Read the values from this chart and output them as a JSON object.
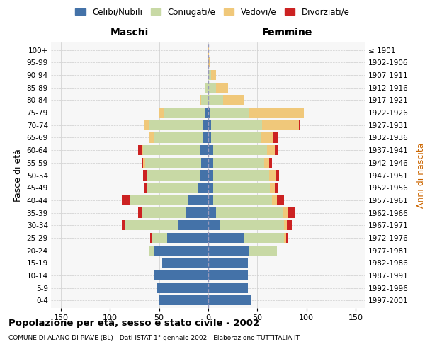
{
  "age_groups": [
    "0-4",
    "5-9",
    "10-14",
    "15-19",
    "20-24",
    "25-29",
    "30-34",
    "35-39",
    "40-44",
    "45-49",
    "50-54",
    "55-59",
    "60-64",
    "65-69",
    "70-74",
    "75-79",
    "80-84",
    "85-89",
    "90-94",
    "95-99",
    "100+"
  ],
  "birth_years": [
    "1997-2001",
    "1992-1996",
    "1987-1991",
    "1982-1986",
    "1977-1981",
    "1972-1976",
    "1967-1971",
    "1962-1966",
    "1957-1961",
    "1952-1956",
    "1947-1951",
    "1942-1946",
    "1937-1941",
    "1932-1936",
    "1927-1931",
    "1922-1926",
    "1917-1921",
    "1912-1916",
    "1907-1911",
    "1902-1906",
    "≤ 1901"
  ],
  "males": {
    "celibi": [
      50,
      52,
      55,
      47,
      55,
      42,
      30,
      23,
      20,
      10,
      8,
      7,
      8,
      5,
      5,
      3,
      0,
      0,
      0,
      0,
      0
    ],
    "coniugati": [
      0,
      0,
      0,
      0,
      5,
      15,
      55,
      45,
      60,
      52,
      55,
      57,
      58,
      50,
      55,
      42,
      7,
      3,
      0,
      0,
      0
    ],
    "vedovi": [
      0,
      0,
      0,
      0,
      0,
      0,
      0,
      0,
      0,
      0,
      0,
      2,
      2,
      5,
      5,
      5,
      2,
      0,
      0,
      0,
      0
    ],
    "divorziati": [
      0,
      0,
      0,
      0,
      0,
      2,
      3,
      3,
      8,
      3,
      3,
      2,
      3,
      0,
      0,
      0,
      0,
      0,
      0,
      0,
      0
    ]
  },
  "females": {
    "nubili": [
      43,
      40,
      40,
      40,
      42,
      37,
      12,
      8,
      5,
      5,
      5,
      5,
      5,
      3,
      3,
      2,
      0,
      0,
      0,
      0,
      0
    ],
    "coniugate": [
      0,
      0,
      0,
      0,
      28,
      40,
      65,
      68,
      60,
      58,
      57,
      52,
      55,
      50,
      52,
      40,
      15,
      8,
      3,
      0,
      0
    ],
    "vedove": [
      0,
      0,
      0,
      0,
      0,
      2,
      3,
      5,
      5,
      5,
      7,
      5,
      8,
      13,
      37,
      55,
      22,
      12,
      5,
      2,
      1
    ],
    "divorziate": [
      0,
      0,
      0,
      0,
      0,
      2,
      5,
      8,
      7,
      3,
      3,
      3,
      3,
      5,
      2,
      0,
      0,
      0,
      0,
      0,
      0
    ]
  },
  "colors": {
    "celibi": "#4472a8",
    "coniugati": "#c8d9a5",
    "vedovi": "#f0c87a",
    "divorziati": "#cc2222"
  },
  "xlim": 160,
  "title": "Popolazione per età, sesso e stato civile - 2002",
  "subtitle": "COMUNE DI ALANO DI PIAVE (BL) - Dati ISTAT 1° gennaio 2002 - Elaborazione TUTTITALIA.IT",
  "ylabel": "Fasce di età",
  "ylabel_right": "Anni di nascita",
  "xlabel_left": "Maschi",
  "xlabel_right": "Femmine",
  "legend_labels": [
    "Celibi/Nubili",
    "Coniugati/e",
    "Vedovi/e",
    "Divorziati/e"
  ],
  "background_color": "#ffffff",
  "plot_bg_color": "#f7f7f7",
  "grid_color": "#cccccc"
}
